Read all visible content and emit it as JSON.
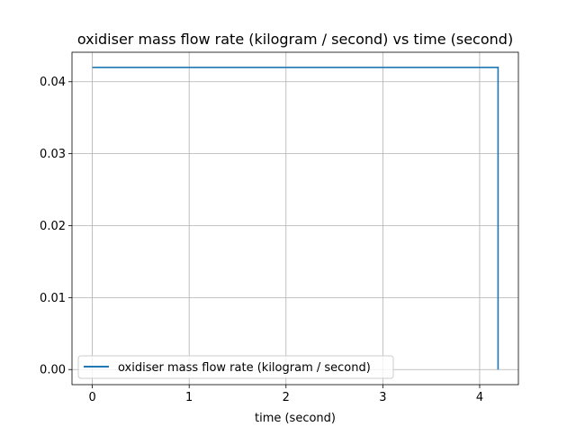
{
  "chart_data": {
    "type": "line",
    "title": "oxidiser mass flow rate (kilogram / second) vs time (second)",
    "xlabel": "time (second)",
    "ylabel": "",
    "xlim": [
      -0.21,
      4.4
    ],
    "ylim": [
      -0.0021,
      0.0441
    ],
    "x_ticks": [
      0,
      1,
      2,
      3,
      4
    ],
    "x_tick_labels": [
      "0",
      "1",
      "2",
      "3",
      "4"
    ],
    "y_ticks": [
      0.0,
      0.01,
      0.02,
      0.03,
      0.04
    ],
    "y_tick_labels": [
      "0.00",
      "0.01",
      "0.02",
      "0.03",
      "0.04"
    ],
    "grid": true,
    "legend_position": "lower-left",
    "series": [
      {
        "name": "oxidiser mass flow rate (kilogram / second)",
        "color": "#1f77b4",
        "x": [
          0,
          4.19,
          4.19
        ],
        "y": [
          0.042,
          0.042,
          0.0
        ]
      }
    ]
  }
}
